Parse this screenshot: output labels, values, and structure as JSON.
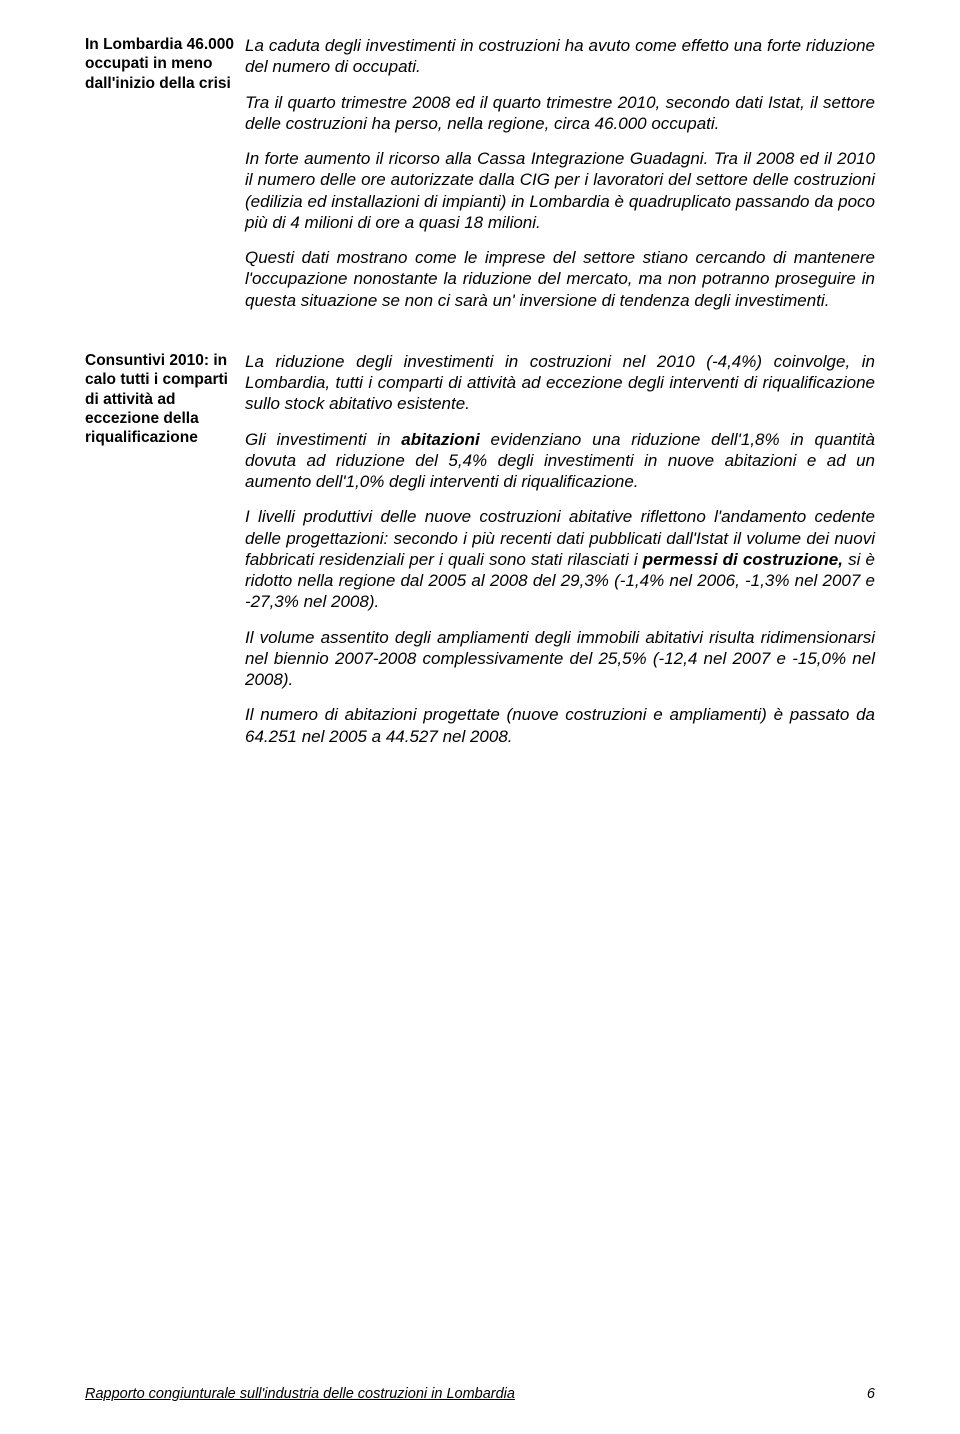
{
  "sidebar": {
    "heading1": "In Lombardia 46.000 occupati in meno dall'inizio della crisi",
    "heading2": "Consuntivi 2010: in calo tutti i comparti di attività ad eccezione della riqualificazione"
  },
  "paragraphs": {
    "p1": "La caduta degli investimenti in costruzioni ha avuto come effetto una forte riduzione del numero di occupati.",
    "p2": "Tra il quarto trimestre 2008 ed il quarto trimestre 2010, secondo dati Istat, il settore delle costruzioni ha perso, nella regione, circa 46.000 occupati.",
    "p3": "In forte aumento il ricorso alla Cassa Integrazione Guadagni. Tra il 2008 ed il 2010 il numero delle ore autorizzate dalla CIG per i lavoratori del settore delle costruzioni (edilizia ed installazioni di impianti) in Lombardia è quadruplicato passando da poco più di 4 milioni di ore a quasi 18 milioni.",
    "p4": "Questi dati mostrano come le imprese del settore stiano cercando di mantenere l'occupazione nonostante la riduzione del mercato, ma non potranno proseguire in questa situazione se non ci sarà un' inversione di tendenza degli investimenti.",
    "p5": "La riduzione degli investimenti in costruzioni nel 2010 (-4,4%) coinvolge, in Lombardia, tutti i comparti di attività ad eccezione degli interventi di riqualificazione sullo stock abitativo esistente.",
    "p6a": "Gli investimenti in ",
    "p6b": "abitazioni",
    "p6c": " evidenziano una riduzione dell'1,8% in quantità dovuta ad riduzione del 5,4% degli investimenti in nuove abitazioni e ad un aumento dell'1,0% degli interventi di riqualificazione.",
    "p7a": "I livelli produttivi delle nuove costruzioni abitative riflettono l'andamento cedente delle progettazioni: secondo i più recenti dati pubblicati dall'Istat il volume dei nuovi fabbricati residenziali per i quali sono stati rilasciati i ",
    "p7b": "permessi di costruzione,",
    "p7c": " si è ridotto nella regione dal 2005 al 2008 del 29,3% (-1,4% nel 2006, -1,3% nel 2007 e -27,3% nel 2008).",
    "p8": "Il volume assentito degli ampliamenti degli immobili abitativi risulta ridimensionarsi nel biennio 2007-2008 complessivamente del 25,5% (-12,4 nel 2007 e -15,0% nel 2008).",
    "p9": "Il numero di abitazioni progettate (nuove costruzioni e ampliamenti) è passato da 64.251 nel 2005 a 44.527 nel 2008."
  },
  "footer": {
    "title": "Rapporto congiunturale sull'industria delle costruzioni in Lombardia",
    "page": "6"
  }
}
